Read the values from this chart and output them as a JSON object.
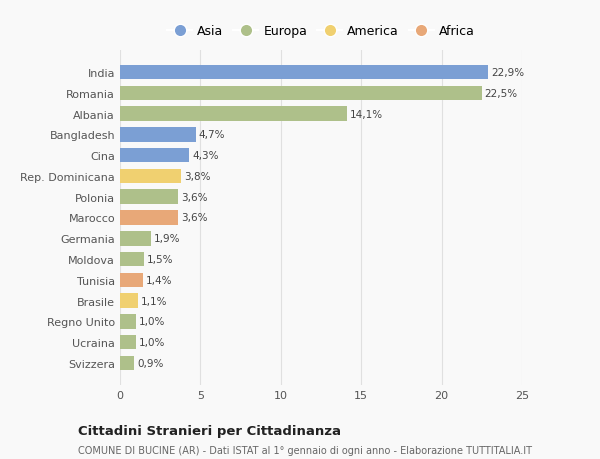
{
  "countries": [
    "India",
    "Romania",
    "Albania",
    "Bangladesh",
    "Cina",
    "Rep. Dominicana",
    "Polonia",
    "Marocco",
    "Germania",
    "Moldova",
    "Tunisia",
    "Brasile",
    "Regno Unito",
    "Ucraina",
    "Svizzera"
  ],
  "values": [
    22.9,
    22.5,
    14.1,
    4.7,
    4.3,
    3.8,
    3.6,
    3.6,
    1.9,
    1.5,
    1.4,
    1.1,
    1.0,
    1.0,
    0.9
  ],
  "labels": [
    "22,9%",
    "22,5%",
    "14,1%",
    "4,7%",
    "4,3%",
    "3,8%",
    "3,6%",
    "3,6%",
    "1,9%",
    "1,5%",
    "1,4%",
    "1,1%",
    "1,0%",
    "1,0%",
    "0,9%"
  ],
  "continents": [
    "Asia",
    "Europa",
    "Europa",
    "Asia",
    "Asia",
    "America",
    "Europa",
    "Africa",
    "Europa",
    "Europa",
    "Africa",
    "America",
    "Europa",
    "Europa",
    "Europa"
  ],
  "colors": {
    "Asia": "#7b9fd4",
    "Europa": "#aec08a",
    "America": "#f0d070",
    "Africa": "#e8a878"
  },
  "legend_order": [
    "Asia",
    "Europa",
    "America",
    "Africa"
  ],
  "title": "Cittadini Stranieri per Cittadinanza",
  "subtitle": "COMUNE DI BUCINE (AR) - Dati ISTAT al 1° gennaio di ogni anno - Elaborazione TUTTITALIA.IT",
  "xlim": [
    0,
    25
  ],
  "xticks": [
    0,
    5,
    10,
    15,
    20,
    25
  ],
  "bg_color": "#f9f9f9",
  "grid_color": "#e0e0e0"
}
